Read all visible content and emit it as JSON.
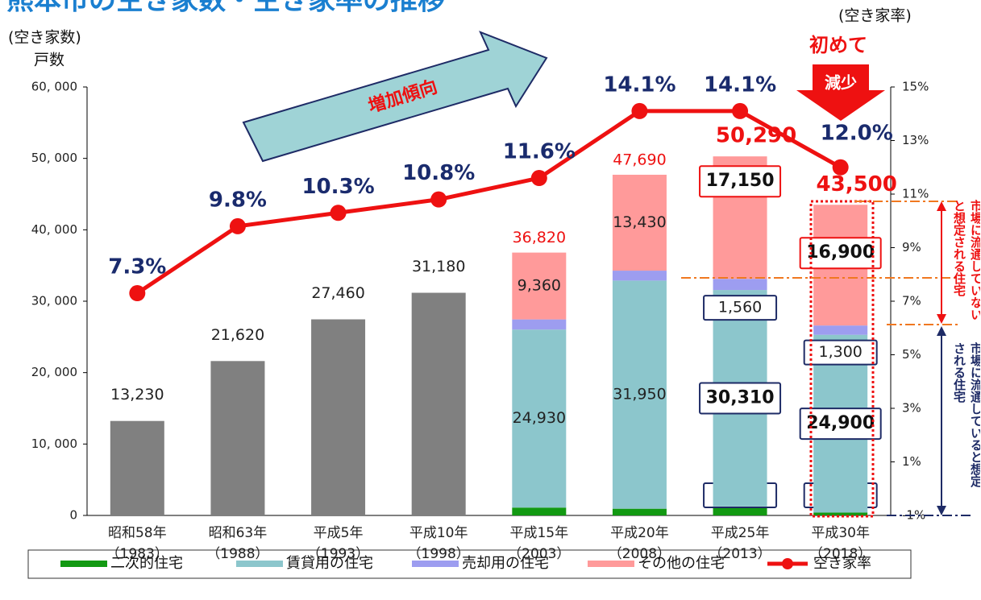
{
  "chart_data": {
    "type": "bar",
    "title": "熊本市の空き家数・空き家率の推移",
    "y_axis_label": "(空き家数)",
    "y_axis_unit": "戸数",
    "y2_axis_label": "(空き家率)",
    "annotations": {
      "trend": "増加傾向",
      "first": "初めて",
      "decrease": "減少",
      "not_on_market": "市場に流通していないと想定される住宅",
      "on_market": "市場に流通していると想定される住宅"
    },
    "categories": [
      "昭和58年",
      "昭和63年",
      "平成5年",
      "平成10年",
      "平成15年",
      "平成20年",
      "平成25年",
      "平成30年"
    ],
    "category_years": [
      "（1983）",
      "（1988）",
      "（1993）",
      "（1998）",
      "（2003）",
      "（2008）",
      "（2013）",
      "（2018）"
    ],
    "totals": [
      13230,
      21620,
      27460,
      31180,
      36820,
      47690,
      50290,
      43500
    ],
    "totals_labels": [
      "13,230",
      "21,620",
      "27,460",
      "31,180",
      "36,820",
      "47,690",
      "50,290",
      "43,500"
    ],
    "totals_color": "#808080",
    "series": [
      {
        "name": "二次的住宅",
        "color": "#129912",
        "values": [
          null,
          null,
          null,
          null,
          1100,
          940,
          1260,
          400
        ],
        "value_labels": [
          null,
          null,
          null,
          null,
          "1,100",
          "940",
          "1,260",
          "400"
        ]
      },
      {
        "name": "賃貸用の住宅",
        "color": "#8cc6cc",
        "values": [
          null,
          null,
          null,
          null,
          24930,
          31950,
          30310,
          24900
        ],
        "value_labels": [
          null,
          null,
          null,
          null,
          "24,930",
          "31,950",
          "30,310",
          "24,900"
        ]
      },
      {
        "name": "売却用の住宅",
        "color": "#9d9df0",
        "values": [
          null,
          null,
          null,
          null,
          1420,
          1390,
          1560,
          1300
        ],
        "value_labels": [
          null,
          null,
          null,
          null,
          "1,420",
          "1,390",
          "1,560",
          "1,300"
        ]
      },
      {
        "name": "その他の住宅",
        "color": "#ff9a9a",
        "values": [
          null,
          null,
          null,
          null,
          9360,
          13430,
          17150,
          16900
        ],
        "value_labels": [
          null,
          null,
          null,
          null,
          "9,360",
          "13,430",
          "17,150",
          "16,900"
        ]
      },
      {
        "name": "空き家率",
        "color": "#ee1111",
        "type": "line",
        "axis": "y2",
        "values": [
          7.3,
          9.8,
          10.3,
          10.8,
          11.6,
          14.1,
          14.1,
          12.0
        ],
        "value_labels": [
          "7.3%",
          "9.8%",
          "10.3%",
          "10.8%",
          "11.6%",
          "14.1%",
          "14.1%",
          "12.0%"
        ]
      }
    ],
    "ylim": [
      0,
      60000
    ],
    "yticks": [
      0,
      {
        "value": 10000,
        "label": "10, 000"
      },
      {
        "value": 20000,
        "label": "20, 000"
      },
      {
        "value": 30000,
        "label": "30, 000"
      },
      {
        "value": 40000,
        "label": "40, 000"
      },
      {
        "value": 50000,
        "label": "50, 000"
      },
      {
        "value": 60000,
        "label": "60, 000"
      }
    ],
    "y2lim": [
      -1,
      15
    ],
    "y2ticks": [
      {
        "value": -1,
        "label": "-1%"
      },
      {
        "value": 1,
        "label": "1%"
      },
      {
        "value": 3,
        "label": "3%"
      },
      {
        "value": 5,
        "label": "5%"
      },
      {
        "value": 7,
        "label": "7%"
      },
      {
        "value": 9,
        "label": "9%"
      },
      {
        "value": 11,
        "label": "11%"
      },
      {
        "value": 13,
        "label": "13%"
      },
      {
        "value": 15,
        "label": "15%"
      }
    ],
    "legend": "bottom"
  }
}
